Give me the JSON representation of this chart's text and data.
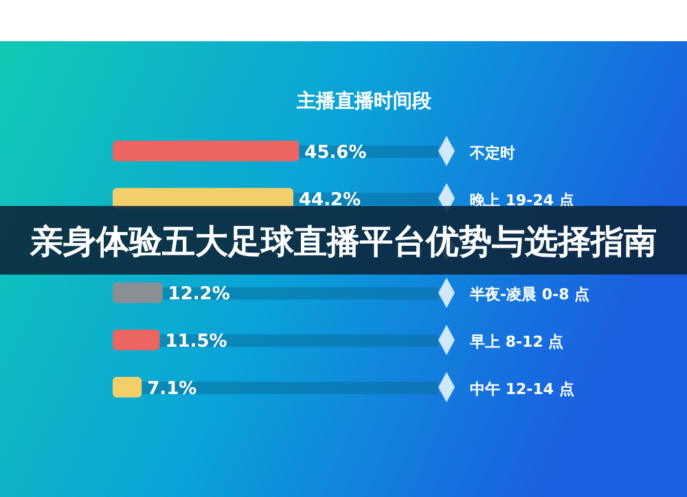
{
  "chart_data": {
    "type": "bar",
    "orientation": "horizontal",
    "title": "主播直播时间段",
    "categories": [
      "不定时",
      "晚上 19-24 点",
      null,
      "半夜-凌晨 0-8 点",
      "早上 8-12 点",
      "中午 12-14 点"
    ],
    "values": [
      45.6,
      44.2,
      null,
      12.2,
      11.5,
      7.1
    ],
    "value_labels": [
      "45.6%",
      "44.2%",
      null,
      "12.2%",
      "11.5%",
      "7.1%"
    ],
    "colors": [
      "#ec6562",
      "#f3cf6b",
      null,
      "#8a8f94",
      "#ec6562",
      "#f3cf6b"
    ],
    "xlim": [
      0,
      80
    ],
    "annotations": [
      "亲身体验五大足球直播平台优势与选择指南"
    ]
  }
}
